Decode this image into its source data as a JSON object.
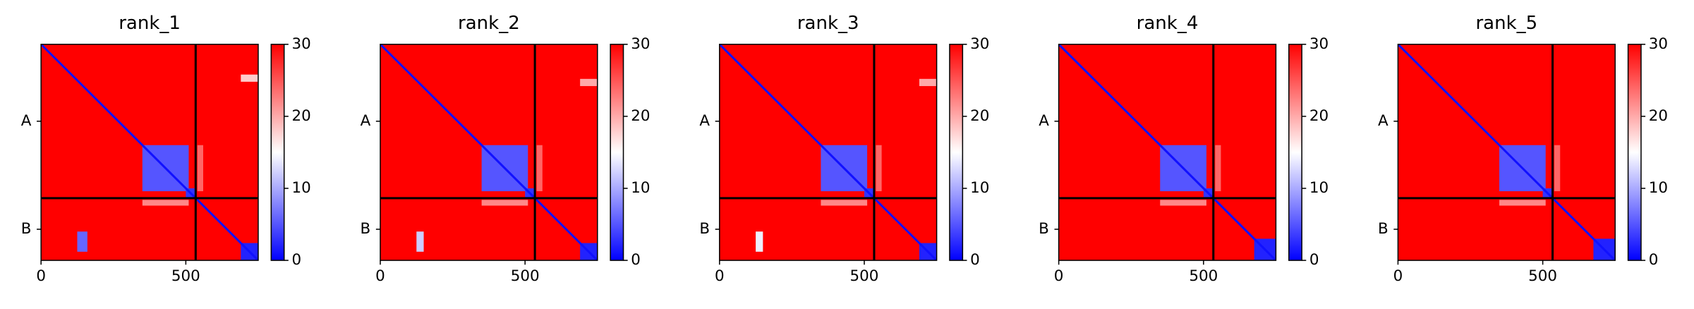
{
  "chart_data": [
    {
      "type": "heatmap",
      "title": "rank_1",
      "xlim": [
        0,
        750
      ],
      "ylim": [
        750,
        0
      ],
      "xticks": [
        0,
        500
      ],
      "yticks": [
        {
          "value": 267,
          "label": "A"
        },
        {
          "value": 642,
          "label": "B"
        }
      ],
      "boundaries": [
        534
      ],
      "diagonal": 1,
      "clim": [
        0,
        30
      ],
      "cticks": [
        0,
        10,
        20,
        30
      ],
      "colors": [
        "#0000ff",
        "#ffffff",
        "#ff0000"
      ],
      "cells": [
        {
          "x": [
            0,
            750
          ],
          "y": [
            0,
            750
          ],
          "value": 30
        },
        {
          "x": [
            350,
            510
          ],
          "y": [
            350,
            510
          ],
          "value": 5
        },
        {
          "x": [
            500,
            534
          ],
          "y": [
            500,
            534
          ],
          "value": 3
        },
        {
          "x": [
            690,
            750
          ],
          "y": [
            690,
            750
          ],
          "value": 2
        },
        {
          "x": [
            125,
            160
          ],
          "y": [
            650,
            720
          ],
          "value": 6
        },
        {
          "x": [
            690,
            750
          ],
          "y": [
            105,
            130
          ],
          "value": 18
        },
        {
          "x": [
            540,
            560
          ],
          "y": [
            350,
            510
          ],
          "value": 24
        },
        {
          "x": [
            350,
            510
          ],
          "y": [
            540,
            560
          ],
          "value": 22
        }
      ]
    },
    {
      "type": "heatmap",
      "title": "rank_2",
      "xlim": [
        0,
        750
      ],
      "ylim": [
        750,
        0
      ],
      "xticks": [
        0,
        500
      ],
      "yticks": [
        {
          "value": 267,
          "label": "A"
        },
        {
          "value": 642,
          "label": "B"
        }
      ],
      "boundaries": [
        534
      ],
      "diagonal": 1,
      "clim": [
        0,
        30
      ],
      "cticks": [
        0,
        10,
        20,
        30
      ],
      "colors": [
        "#0000ff",
        "#ffffff",
        "#ff0000"
      ],
      "cells": [
        {
          "x": [
            0,
            750
          ],
          "y": [
            0,
            750
          ],
          "value": 30
        },
        {
          "x": [
            350,
            510
          ],
          "y": [
            350,
            510
          ],
          "value": 5
        },
        {
          "x": [
            500,
            534
          ],
          "y": [
            500,
            534
          ],
          "value": 3
        },
        {
          "x": [
            690,
            750
          ],
          "y": [
            690,
            750
          ],
          "value": 2
        },
        {
          "x": [
            125,
            150
          ],
          "y": [
            650,
            720
          ],
          "value": 12
        },
        {
          "x": [
            690,
            750
          ],
          "y": [
            120,
            145
          ],
          "value": 20
        },
        {
          "x": [
            540,
            560
          ],
          "y": [
            350,
            510
          ],
          "value": 24
        },
        {
          "x": [
            350,
            510
          ],
          "y": [
            540,
            560
          ],
          "value": 22
        }
      ]
    },
    {
      "type": "heatmap",
      "title": "rank_3",
      "xlim": [
        0,
        750
      ],
      "ylim": [
        750,
        0
      ],
      "xticks": [
        0,
        500
      ],
      "yticks": [
        {
          "value": 267,
          "label": "A"
        },
        {
          "value": 642,
          "label": "B"
        }
      ],
      "boundaries": [
        534
      ],
      "diagonal": 1,
      "clim": [
        0,
        30
      ],
      "cticks": [
        0,
        10,
        20,
        30
      ],
      "colors": [
        "#0000ff",
        "#ffffff",
        "#ff0000"
      ],
      "cells": [
        {
          "x": [
            0,
            750
          ],
          "y": [
            0,
            750
          ],
          "value": 30
        },
        {
          "x": [
            350,
            510
          ],
          "y": [
            350,
            510
          ],
          "value": 5
        },
        {
          "x": [
            500,
            534
          ],
          "y": [
            500,
            534
          ],
          "value": 3
        },
        {
          "x": [
            690,
            750
          ],
          "y": [
            690,
            750
          ],
          "value": 2
        },
        {
          "x": [
            125,
            150
          ],
          "y": [
            650,
            720
          ],
          "value": 14
        },
        {
          "x": [
            690,
            750
          ],
          "y": [
            120,
            145
          ],
          "value": 20
        },
        {
          "x": [
            540,
            560
          ],
          "y": [
            350,
            510
          ],
          "value": 24
        },
        {
          "x": [
            350,
            510
          ],
          "y": [
            540,
            560
          ],
          "value": 22
        }
      ]
    },
    {
      "type": "heatmap",
      "title": "rank_4",
      "xlim": [
        0,
        750
      ],
      "ylim": [
        750,
        0
      ],
      "xticks": [
        0,
        500
      ],
      "yticks": [
        {
          "value": 267,
          "label": "A"
        },
        {
          "value": 642,
          "label": "B"
        }
      ],
      "boundaries": [
        534
      ],
      "diagonal": 1,
      "clim": [
        0,
        30
      ],
      "cticks": [
        0,
        10,
        20,
        30
      ],
      "colors": [
        "#0000ff",
        "#ffffff",
        "#ff0000"
      ],
      "cells": [
        {
          "x": [
            0,
            750
          ],
          "y": [
            0,
            750
          ],
          "value": 30
        },
        {
          "x": [
            350,
            510
          ],
          "y": [
            350,
            510
          ],
          "value": 5
        },
        {
          "x": [
            500,
            534
          ],
          "y": [
            500,
            534
          ],
          "value": 3
        },
        {
          "x": [
            675,
            750
          ],
          "y": [
            675,
            750
          ],
          "value": 2
        },
        {
          "x": [
            540,
            560
          ],
          "y": [
            350,
            510
          ],
          "value": 24
        },
        {
          "x": [
            350,
            510
          ],
          "y": [
            540,
            560
          ],
          "value": 22
        }
      ]
    },
    {
      "type": "heatmap",
      "title": "rank_5",
      "xlim": [
        0,
        750
      ],
      "ylim": [
        750,
        0
      ],
      "xticks": [
        0,
        500
      ],
      "yticks": [
        {
          "value": 267,
          "label": "A"
        },
        {
          "value": 642,
          "label": "B"
        }
      ],
      "boundaries": [
        534
      ],
      "diagonal": 1,
      "clim": [
        0,
        30
      ],
      "cticks": [
        0,
        10,
        20,
        30
      ],
      "colors": [
        "#0000ff",
        "#ffffff",
        "#ff0000"
      ],
      "cells": [
        {
          "x": [
            0,
            750
          ],
          "y": [
            0,
            750
          ],
          "value": 30
        },
        {
          "x": [
            350,
            510
          ],
          "y": [
            350,
            510
          ],
          "value": 5
        },
        {
          "x": [
            500,
            534
          ],
          "y": [
            500,
            534
          ],
          "value": 3
        },
        {
          "x": [
            675,
            750
          ],
          "y": [
            675,
            750
          ],
          "value": 2
        },
        {
          "x": [
            540,
            560
          ],
          "y": [
            350,
            510
          ],
          "value": 24
        },
        {
          "x": [
            350,
            510
          ],
          "y": [
            540,
            560
          ],
          "value": 22
        }
      ]
    }
  ]
}
